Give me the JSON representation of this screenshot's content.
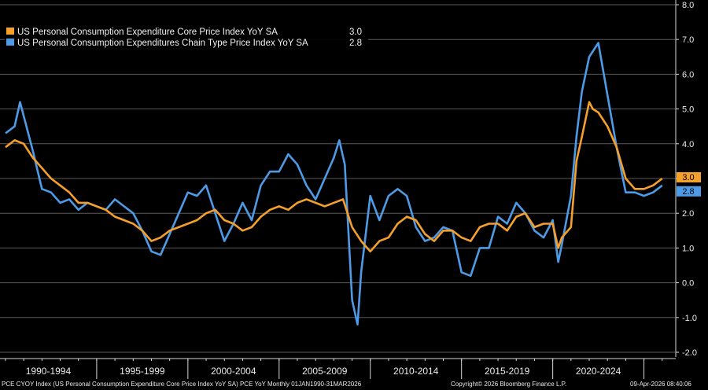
{
  "chart_data": {
    "type": "line",
    "ylim": [
      -2.0,
      8.0
    ],
    "y_ticks": [
      "8.0",
      "7.0",
      "6.0",
      "5.0",
      "4.0",
      "3.0",
      "2.0",
      "1.0",
      "0.0",
      "-1.0",
      "-2.0"
    ],
    "x_ticks": [
      "1990-1994",
      "1995-1999",
      "2000-2004",
      "2005-2009",
      "2010-2014",
      "2015-2019",
      "2020-2024"
    ],
    "grid": "horizontal",
    "legend": "top-left",
    "series": [
      {
        "name": "US Personal Consumption Expenditure Core Price Index YoY SA",
        "last_value": "3.0",
        "color": "#f5a02a",
        "x": [
          1990.0,
          1990.5,
          1991.0,
          1991.5,
          1992.0,
          1992.5,
          1993.0,
          1993.5,
          1994.0,
          1994.5,
          1995.0,
          1995.5,
          1996.0,
          1996.5,
          1997.0,
          1997.5,
          1998.0,
          1998.5,
          1999.0,
          1999.5,
          2000.0,
          2000.5,
          2001.0,
          2001.5,
          2002.0,
          2002.5,
          2003.0,
          2003.5,
          2004.0,
          2004.5,
          2005.0,
          2005.5,
          2006.0,
          2006.5,
          2007.0,
          2007.5,
          2008.0,
          2008.5,
          2009.0,
          2009.5,
          2010.0,
          2010.5,
          2011.0,
          2011.5,
          2012.0,
          2012.5,
          2013.0,
          2013.5,
          2014.0,
          2014.5,
          2015.0,
          2015.5,
          2016.0,
          2016.5,
          2017.0,
          2017.5,
          2018.0,
          2018.5,
          2019.0,
          2019.5,
          2020.0,
          2020.3,
          2020.5,
          2021.0,
          2021.3,
          2021.6,
          2022.0,
          2022.2,
          2022.5,
          2023.0,
          2023.5,
          2024.0,
          2024.5,
          2025.0,
          2025.5,
          2026.0
        ],
        "y": [
          3.9,
          4.1,
          4.0,
          3.6,
          3.3,
          3.0,
          2.8,
          2.6,
          2.3,
          2.3,
          2.2,
          2.1,
          1.9,
          1.8,
          1.7,
          1.5,
          1.2,
          1.3,
          1.5,
          1.6,
          1.7,
          1.8,
          2.0,
          2.1,
          1.8,
          1.7,
          1.5,
          1.6,
          1.9,
          2.1,
          2.2,
          2.1,
          2.3,
          2.4,
          2.3,
          2.2,
          2.3,
          2.4,
          1.6,
          1.2,
          0.9,
          1.2,
          1.3,
          1.7,
          1.9,
          1.8,
          1.4,
          1.2,
          1.5,
          1.5,
          1.3,
          1.2,
          1.6,
          1.7,
          1.7,
          1.5,
          1.9,
          2.0,
          1.6,
          1.7,
          1.7,
          1.0,
          1.3,
          1.6,
          3.5,
          4.2,
          5.2,
          5.0,
          4.9,
          4.5,
          3.9,
          3.0,
          2.7,
          2.7,
          2.8,
          3.0
        ]
      },
      {
        "name": "US Personal Consumption Expenditures Chain Type Price Index YoY SA",
        "last_value": "2.8",
        "color": "#4d9be6",
        "x": [
          1990.0,
          1990.5,
          1990.8,
          1991.0,
          1991.5,
          1992.0,
          1992.5,
          1993.0,
          1993.5,
          1994.0,
          1994.5,
          1995.0,
          1995.5,
          1996.0,
          1996.5,
          1997.0,
          1997.5,
          1998.0,
          1998.5,
          1999.0,
          1999.5,
          2000.0,
          2000.5,
          2001.0,
          2001.5,
          2002.0,
          2002.5,
          2003.0,
          2003.5,
          2004.0,
          2004.5,
          2005.0,
          2005.5,
          2006.0,
          2006.5,
          2007.0,
          2007.5,
          2008.0,
          2008.3,
          2008.6,
          2009.0,
          2009.3,
          2009.5,
          2010.0,
          2010.5,
          2011.0,
          2011.5,
          2012.0,
          2012.5,
          2013.0,
          2013.5,
          2014.0,
          2014.5,
          2015.0,
          2015.5,
          2016.0,
          2016.5,
          2017.0,
          2017.5,
          2018.0,
          2018.5,
          2019.0,
          2019.5,
          2020.0,
          2020.3,
          2020.5,
          2021.0,
          2021.3,
          2021.6,
          2022.0,
          2022.5,
          2023.0,
          2023.5,
          2024.0,
          2024.5,
          2025.0,
          2025.5,
          2026.0
        ],
        "y": [
          4.3,
          4.5,
          5.2,
          4.8,
          3.8,
          2.7,
          2.6,
          2.3,
          2.4,
          2.1,
          2.3,
          2.2,
          2.1,
          2.4,
          2.2,
          2.0,
          1.5,
          0.9,
          0.8,
          1.4,
          2.0,
          2.6,
          2.5,
          2.8,
          2.0,
          1.2,
          1.7,
          2.3,
          1.8,
          2.8,
          3.2,
          3.2,
          3.7,
          3.4,
          2.8,
          2.4,
          3.0,
          3.6,
          4.1,
          3.4,
          -0.5,
          -1.2,
          0.3,
          2.5,
          1.8,
          2.5,
          2.7,
          2.5,
          1.6,
          1.2,
          1.3,
          1.6,
          1.5,
          0.3,
          0.2,
          1.0,
          1.0,
          1.9,
          1.7,
          2.3,
          2.0,
          1.5,
          1.3,
          1.8,
          0.6,
          1.1,
          2.5,
          4.2,
          5.5,
          6.5,
          6.9,
          5.4,
          3.9,
          2.6,
          2.6,
          2.5,
          2.6,
          2.8
        ]
      }
    ]
  },
  "footer": {
    "left": "PCE CYOY Index (US Personal Consumption Expenditure Core Price Index YoY SA) PCE YoY Monthly 01JAN1990-31MAR2026",
    "center": "Copyright© 2026 Bloomberg Finance L.P.",
    "right": "09-Apr-2026 08:40:06"
  }
}
